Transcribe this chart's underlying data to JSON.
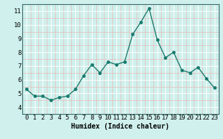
{
  "x": [
    0,
    1,
    2,
    3,
    4,
    5,
    6,
    7,
    8,
    9,
    10,
    11,
    12,
    13,
    14,
    15,
    16,
    17,
    18,
    19,
    20,
    21,
    22,
    23
  ],
  "y": [
    5.3,
    4.8,
    4.8,
    4.5,
    4.7,
    4.8,
    5.3,
    6.3,
    7.1,
    6.5,
    7.3,
    7.1,
    7.3,
    9.3,
    10.2,
    11.2,
    8.9,
    7.6,
    8.0,
    6.7,
    6.5,
    6.9,
    6.1,
    5.4
  ],
  "line_color": "#1a7a6e",
  "marker": "o",
  "markersize": 2.5,
  "linewidth": 1.0,
  "xlabel": "Humidex (Indice chaleur)",
  "xlim": [
    -0.5,
    23.5
  ],
  "ylim": [
    3.5,
    11.5
  ],
  "yticks": [
    4,
    5,
    6,
    7,
    8,
    9,
    10,
    11
  ],
  "xtick_labels": [
    "0",
    "1",
    "2",
    "3",
    "4",
    "5",
    "6",
    "7",
    "8",
    "9",
    "10",
    "11",
    "12",
    "13",
    "14",
    "15",
    "16",
    "17",
    "18",
    "19",
    "20",
    "21",
    "22",
    "23"
  ],
  "background_color": "#cff0ec",
  "grid_color_major": "#ffffff",
  "grid_color_minor": "#e8b8b8",
  "label_fontsize": 7,
  "tick_fontsize": 6.5
}
